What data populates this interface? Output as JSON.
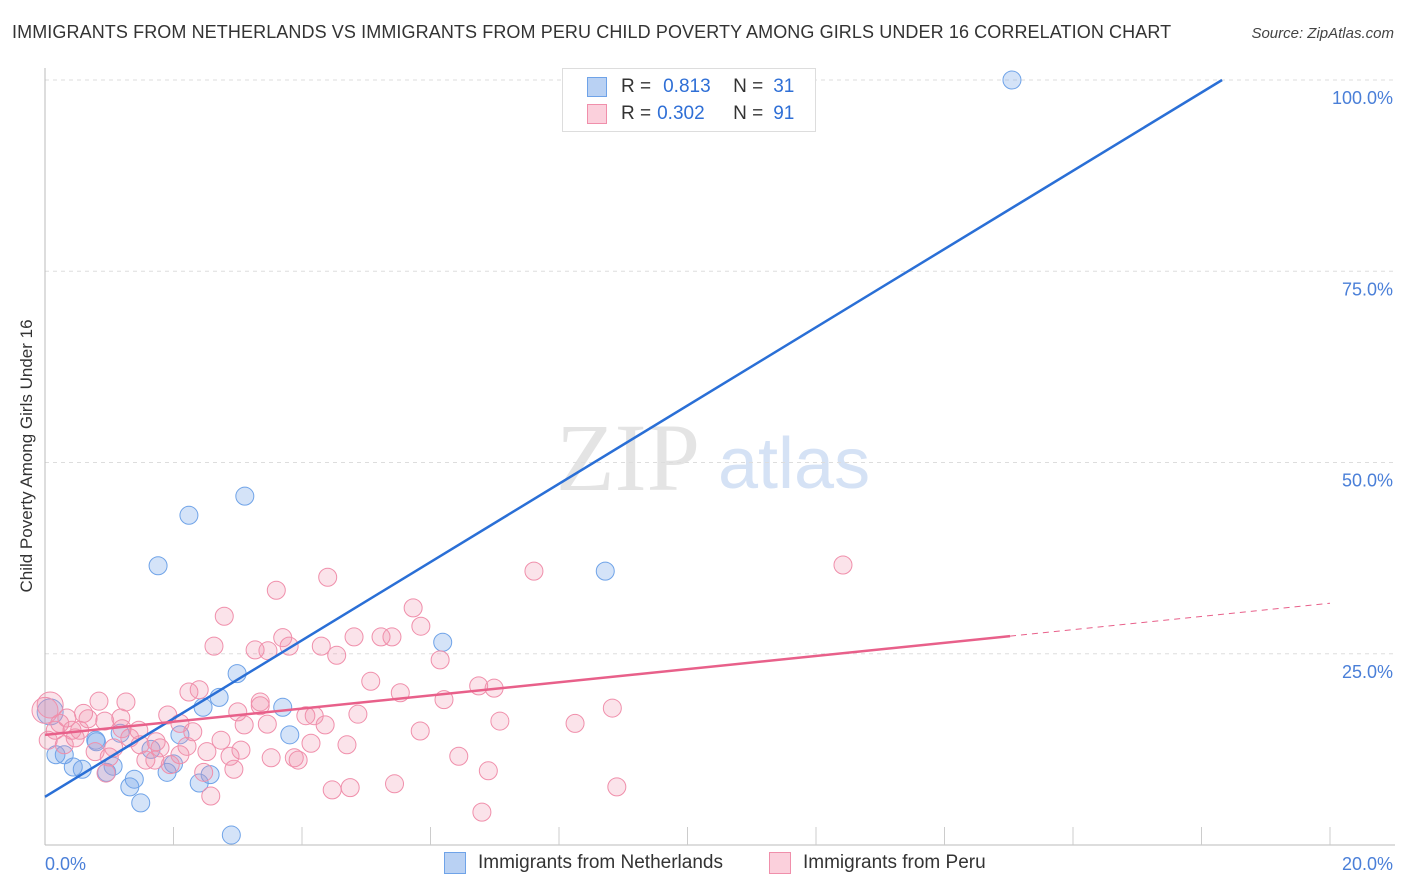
{
  "title": "IMMIGRANTS FROM NETHERLANDS VS IMMIGRANTS FROM PERU CHILD POVERTY AMONG GIRLS UNDER 16 CORRELATION CHART",
  "source": "Source: ZipAtlas.com",
  "legend": {
    "r_label": "R =",
    "n_label": "N =",
    "rows": [
      {
        "r": "0.813",
        "n": "31"
      },
      {
        "r": "0.302",
        "n": "91"
      }
    ]
  },
  "watermark": {
    "zip": "ZIP",
    "atlas": "atlas"
  },
  "colors": {
    "blue": "#6fa3e8",
    "blue_line": "#2a6fd6",
    "pink": "#f08fab",
    "pink_line": "#e8608a",
    "axis_text": "#4a7fd8"
  },
  "chart_data": {
    "type": "scatter",
    "title": "IMMIGRANTS FROM NETHERLANDS VS IMMIGRANTS FROM PERU CHILD POVERTY AMONG GIRLS UNDER 16 CORRELATION CHART",
    "xlabel": "",
    "ylabel": "Child Poverty Among Girls Under 16",
    "xlim": [
      0,
      20
    ],
    "ylim": [
      0,
      100
    ],
    "x_tick_labels": [
      "0.0%",
      "20.0%"
    ],
    "y_tick_labels": [
      "100.0%",
      "75.0%",
      "50.0%",
      "25.0%"
    ],
    "y_ticks": [
      100,
      75,
      50,
      25
    ],
    "series": [
      {
        "name": "Immigrants from Netherlands",
        "color": "#6fa3e8",
        "R": 0.813,
        "N": 31,
        "trend": {
          "x": [
            0,
            18.32
          ],
          "y": [
            6.3,
            100
          ]
        },
        "points": [
          [
            15.05,
            100
          ],
          [
            3.11,
            45.6
          ],
          [
            2.24,
            43.1
          ],
          [
            1.76,
            36.5
          ],
          [
            8.72,
            35.8
          ],
          [
            6.19,
            26.5
          ],
          [
            2.99,
            22.4
          ],
          [
            2.71,
            19.3
          ],
          [
            2.46,
            18.0
          ],
          [
            3.7,
            18.0
          ],
          [
            2.1,
            14.4
          ],
          [
            3.81,
            14.4
          ],
          [
            0.08,
            17.4
          ],
          [
            0.17,
            11.8
          ],
          [
            0.3,
            11.8
          ],
          [
            0.44,
            10.2
          ],
          [
            0.58,
            9.9
          ],
          [
            0.79,
            13.7
          ],
          [
            1.17,
            14.6
          ],
          [
            1.06,
            10.3
          ],
          [
            0.96,
            9.5
          ],
          [
            1.39,
            8.6
          ],
          [
            1.32,
            7.6
          ],
          [
            1.49,
            5.5
          ],
          [
            1.65,
            12.5
          ],
          [
            1.9,
            9.5
          ],
          [
            2.0,
            10.6
          ],
          [
            2.4,
            8.1
          ],
          [
            2.57,
            9.2
          ],
          [
            2.9,
            1.3
          ],
          [
            0.8,
            13.5
          ]
        ]
      },
      {
        "name": "Immigrants from Peru",
        "color": "#f08fab",
        "R": 0.302,
        "N": 91,
        "trend": {
          "x": [
            0,
            15.02
          ],
          "y": [
            14.4,
            27.3
          ]
        },
        "trend_dashed": {
          "x": [
            15.02,
            20
          ],
          "y": [
            27.3,
            31.6
          ]
        },
        "points": [
          [
            12.42,
            36.6
          ],
          [
            7.61,
            35.8
          ],
          [
            4.4,
            35.0
          ],
          [
            3.6,
            33.3
          ],
          [
            5.73,
            31.0
          ],
          [
            2.79,
            29.9
          ],
          [
            5.85,
            28.6
          ],
          [
            3.7,
            27.1
          ],
          [
            4.81,
            27.2
          ],
          [
            5.23,
            27.2
          ],
          [
            5.4,
            27.2
          ],
          [
            2.63,
            26.0
          ],
          [
            3.8,
            26.0
          ],
          [
            4.3,
            26.0
          ],
          [
            3.27,
            25.5
          ],
          [
            3.47,
            25.4
          ],
          [
            4.54,
            24.8
          ],
          [
            6.15,
            24.2
          ],
          [
            5.07,
            21.4
          ],
          [
            6.75,
            20.8
          ],
          [
            6.99,
            20.5
          ],
          [
            2.24,
            20.0
          ],
          [
            2.4,
            20.3
          ],
          [
            5.53,
            19.9
          ],
          [
            6.21,
            19.0
          ],
          [
            0.84,
            18.8
          ],
          [
            1.26,
            18.7
          ],
          [
            3.35,
            18.7
          ],
          [
            3.35,
            18.2
          ],
          [
            8.83,
            17.9
          ],
          [
            3.0,
            17.4
          ],
          [
            4.87,
            17.1
          ],
          [
            4.06,
            16.9
          ],
          [
            1.91,
            17.0
          ],
          [
            4.19,
            16.9
          ],
          [
            1.18,
            16.6
          ],
          [
            0.67,
            16.5
          ],
          [
            0.93,
            16.2
          ],
          [
            0.34,
            16.6
          ],
          [
            2.1,
            15.9
          ],
          [
            7.08,
            16.2
          ],
          [
            8.25,
            15.9
          ],
          [
            3.1,
            15.7
          ],
          [
            4.36,
            15.7
          ],
          [
            0.23,
            15.9
          ],
          [
            0.16,
            15.0
          ],
          [
            0.42,
            15.0
          ],
          [
            0.54,
            15.0
          ],
          [
            1.46,
            15.0
          ],
          [
            0.47,
            14.0
          ],
          [
            1.32,
            14.0
          ],
          [
            2.74,
            13.7
          ],
          [
            1.73,
            13.5
          ],
          [
            4.14,
            13.3
          ],
          [
            5.84,
            14.9
          ],
          [
            0.05,
            13.7
          ],
          [
            2.21,
            12.9
          ],
          [
            1.79,
            12.7
          ],
          [
            1.07,
            12.7
          ],
          [
            0.78,
            12.2
          ],
          [
            2.52,
            12.2
          ],
          [
            3.05,
            12.4
          ],
          [
            4.7,
            13.1
          ],
          [
            2.1,
            11.8
          ],
          [
            2.88,
            11.6
          ],
          [
            6.44,
            11.6
          ],
          [
            3.52,
            11.4
          ],
          [
            3.88,
            11.4
          ],
          [
            3.94,
            11.1
          ],
          [
            1.57,
            11.1
          ],
          [
            1.95,
            10.5
          ],
          [
            2.94,
            9.9
          ],
          [
            0.95,
            9.4
          ],
          [
            2.47,
            9.5
          ],
          [
            6.9,
            9.7
          ],
          [
            5.44,
            8.0
          ],
          [
            4.47,
            7.2
          ],
          [
            4.75,
            7.5
          ],
          [
            8.9,
            7.6
          ],
          [
            2.58,
            6.4
          ],
          [
            6.8,
            4.3
          ],
          [
            0.08,
            18.3
          ],
          [
            0.0,
            17.6
          ],
          [
            1.48,
            13.1
          ],
          [
            0.3,
            13.1
          ],
          [
            1.71,
            11.1
          ],
          [
            3.46,
            15.8
          ],
          [
            1.2,
            15.2
          ],
          [
            2.3,
            14.8
          ],
          [
            0.6,
            17.2
          ],
          [
            1.0,
            11.5
          ]
        ]
      }
    ]
  }
}
